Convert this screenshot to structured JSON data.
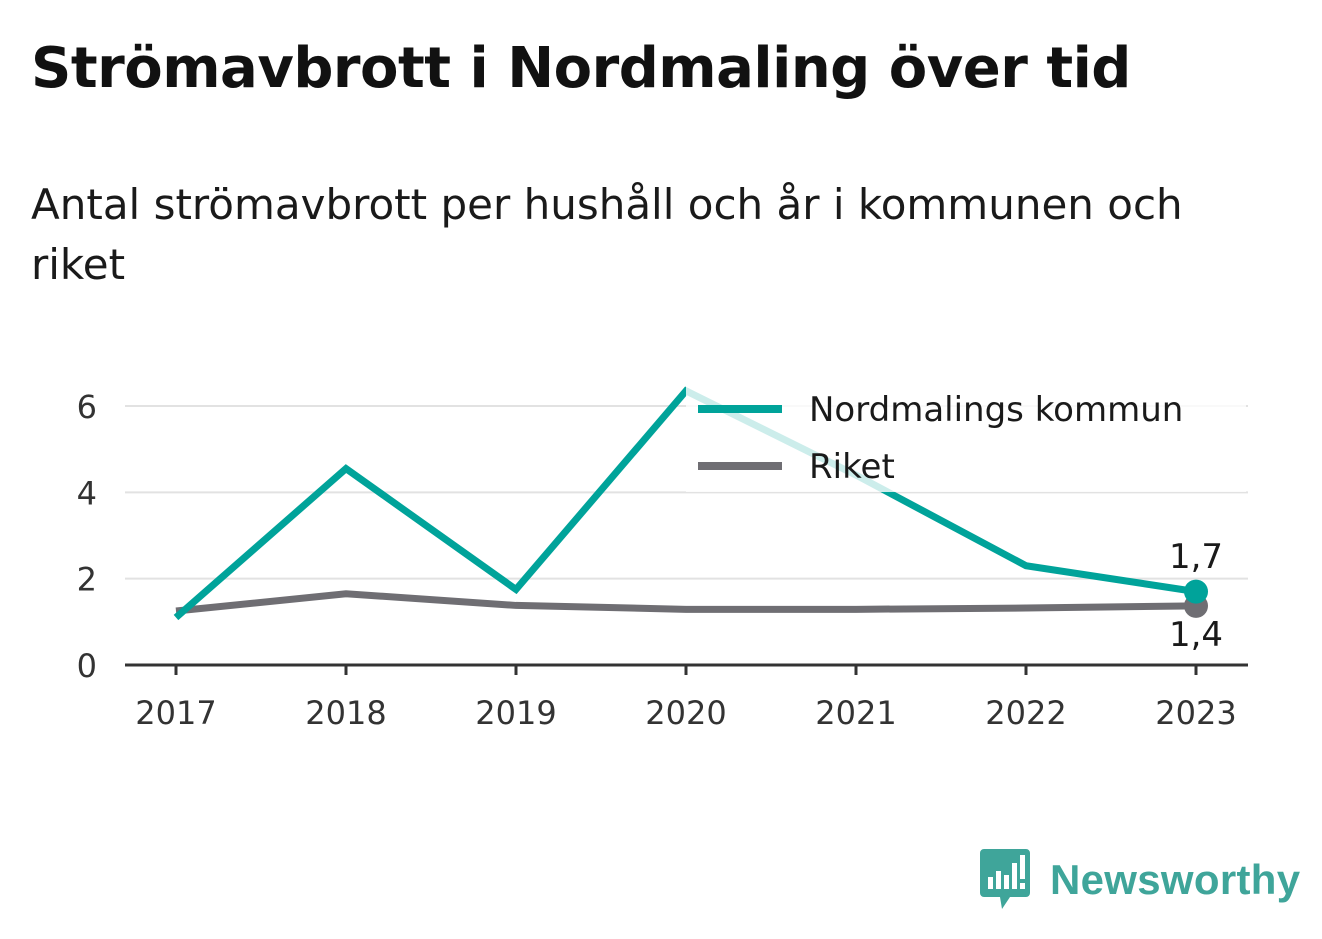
{
  "title": "Strömavbrott i Nordmaling över tid",
  "subtitle": "Antal strömavbrott per hushåll och år i kommunen och riket",
  "brand": "Newsworthy",
  "colors": {
    "kommun": "#00a39a",
    "riket": "#6f6e73",
    "grid": "#e2e2e2",
    "axis": "#333333"
  },
  "chart_data": {
    "type": "line",
    "title": "Strömavbrott i Nordmaling över tid",
    "subtitle": "Antal strömavbrott per hushåll och år i kommunen och riket",
    "xlabel": "",
    "ylabel": "",
    "x": [
      "2017",
      "2018",
      "2019",
      "2020",
      "2021",
      "2022",
      "2023"
    ],
    "ylim": [
      0,
      6
    ],
    "yticks": [
      "0",
      "2",
      "4",
      "6"
    ],
    "grid": true,
    "legend": "top-right",
    "series": [
      {
        "name": "Nordmalings kommun",
        "values": [
          1.1,
          4.55,
          1.75,
          6.35,
          4.4,
          2.3,
          1.7
        ],
        "color": "#00a39a",
        "end_label": "1,7"
      },
      {
        "name": "Riket",
        "values": [
          1.25,
          1.65,
          1.38,
          1.29,
          1.29,
          1.32,
          1.37
        ],
        "color": "#6f6e73",
        "end_label": "1,4"
      }
    ]
  }
}
